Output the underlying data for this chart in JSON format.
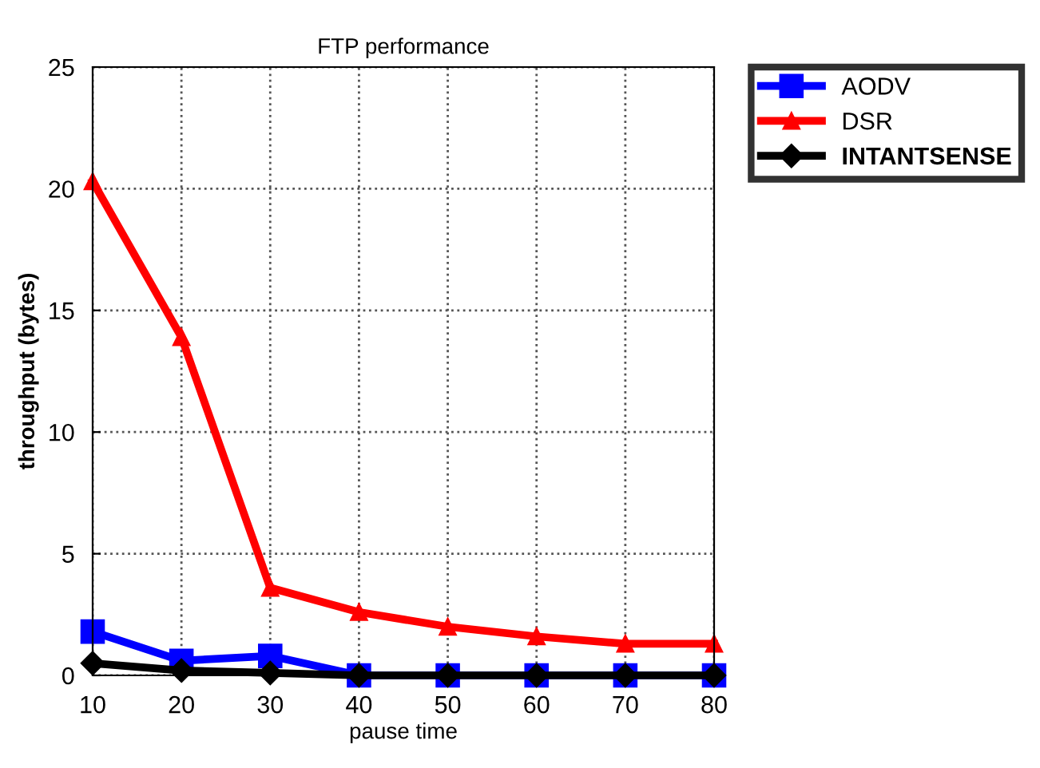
{
  "chart_data": {
    "type": "line",
    "title": "FTP performance",
    "xlabel": "pause time",
    "ylabel": "throughput (bytes)",
    "x": [
      10,
      20,
      30,
      40,
      50,
      60,
      70,
      80
    ],
    "series": [
      {
        "name": "AODV",
        "color": "#0000ff",
        "marker": "square",
        "values": [
          1.8,
          0.6,
          0.8,
          0,
          0,
          0,
          0,
          0
        ]
      },
      {
        "name": "DSR",
        "color": "#ff0000",
        "marker": "triangle",
        "values": [
          20.3,
          13.9,
          3.6,
          2.6,
          2.0,
          1.6,
          1.3,
          1.3
        ]
      },
      {
        "name": "INTANTSENSE",
        "color": "#000000",
        "marker": "diamond",
        "values": [
          0.5,
          0.2,
          0.1,
          0,
          0,
          0,
          0,
          0
        ]
      }
    ],
    "xlim": [
      10,
      80
    ],
    "xticks": [
      10,
      20,
      30,
      40,
      50,
      60,
      70,
      80
    ],
    "ylim": [
      0,
      25
    ],
    "yticks": [
      0,
      5,
      10,
      15,
      20,
      25
    ],
    "grid": true,
    "legend": "top right",
    "line_style": "solid"
  }
}
